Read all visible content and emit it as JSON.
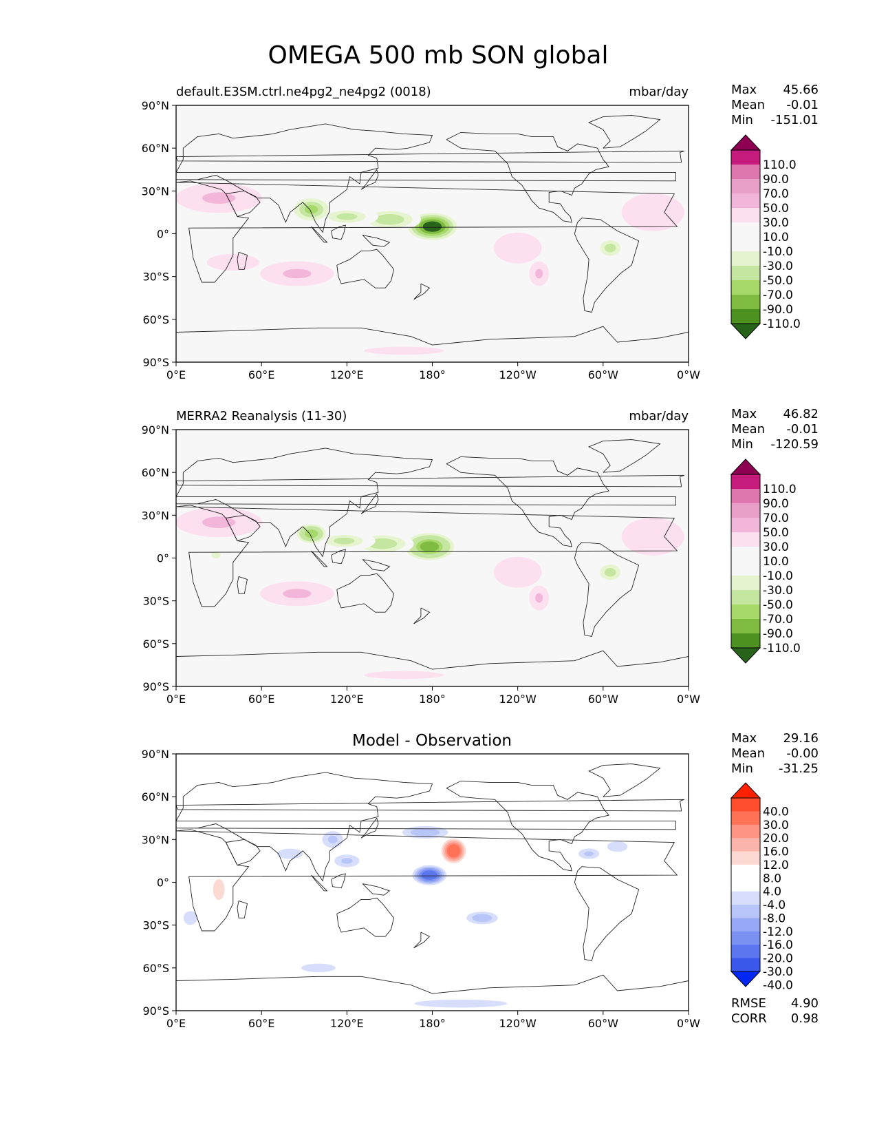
{
  "figure": {
    "title": "OMEGA 500 mb SON global"
  },
  "axes": {
    "lat_ticks": [
      "90°N",
      "60°N",
      "30°N",
      "0°",
      "30°S",
      "60°S",
      "90°S"
    ],
    "lon_ticks": [
      "0°E",
      "60°E",
      "120°E",
      "180°",
      "120°W",
      "60°W",
      "0°W"
    ]
  },
  "colormaps": {
    "pink_green": [
      "#8e0152",
      "#c51b7d",
      "#de77ae",
      "#e8a0c8",
      "#f1b6da",
      "#fde0ef",
      "#f7f7f7",
      "#f7f7f7",
      "#e6f5d0",
      "#c5e6a0",
      "#a6d96a",
      "#7fbc41",
      "#4d9221",
      "#276419"
    ],
    "diff": [
      "#ff2000",
      "#ff4d2e",
      "#ff7256",
      "#fd9383",
      "#fbb4aa",
      "#fcd9d2",
      "#ffffff",
      "#ffffff",
      "#d6defc",
      "#b8c5f9",
      "#97a9f6",
      "#7b91f2",
      "#5b76ef",
      "#3a58ec",
      "#0028f5"
    ]
  },
  "chart_data": [
    {
      "type": "heatmap",
      "title": "default.E3SM.ctrl.ne4pg2_ne4pg2 (0018)",
      "units": "mbar/day",
      "xlim": [
        0,
        360
      ],
      "ylim": [
        -90,
        90
      ],
      "stats": {
        "max_label": "Max",
        "max": "45.66",
        "mean_label": "Mean",
        "mean": "-0.01",
        "min_label": "Min",
        "min": "-151.01"
      },
      "colorbar_levels": [
        "110.0",
        "90.0",
        "70.0",
        "50.0",
        "30.0",
        "10.0",
        "-10.0",
        "-30.0",
        "-50.0",
        "-70.0",
        "-90.0",
        "-110.0"
      ],
      "features": [
        {
          "lon": 180,
          "lat": 5,
          "rx": 20,
          "ry": 11,
          "v": -140
        },
        {
          "lon": 150,
          "lat": 10,
          "rx": 22,
          "ry": 8,
          "v": -75
        },
        {
          "lon": 120,
          "lat": 12,
          "rx": 22,
          "ry": 7,
          "v": -60
        },
        {
          "lon": 95,
          "lat": 17,
          "rx": 14,
          "ry": 9,
          "v": -95
        },
        {
          "lon": 290,
          "lat": 10,
          "rx": 12,
          "ry": 6,
          "v": -30
        },
        {
          "lon": 305,
          "lat": -10,
          "rx": 12,
          "ry": 9,
          "v": -60
        },
        {
          "lon": 30,
          "lat": 25,
          "rx": 35,
          "ry": 12,
          "v": 35
        },
        {
          "lon": 40,
          "lat": -20,
          "rx": 25,
          "ry": 8,
          "v": 28
        },
        {
          "lon": 85,
          "lat": -28,
          "rx": 30,
          "ry": 10,
          "v": 40
        },
        {
          "lon": 240,
          "lat": -10,
          "rx": 28,
          "ry": 18,
          "v": 22
        },
        {
          "lon": 335,
          "lat": 15,
          "rx": 30,
          "ry": 18,
          "v": 25
        },
        {
          "lon": 120,
          "lat": -52,
          "rx": 35,
          "ry": 8,
          "v": -20
        },
        {
          "lon": 175,
          "lat": 45,
          "rx": 20,
          "ry": 7,
          "v": -20
        },
        {
          "lon": 205,
          "lat": 65,
          "rx": 25,
          "ry": 6,
          "v": -18
        },
        {
          "lon": 160,
          "lat": -82,
          "rx": 60,
          "ry": 6,
          "v": 15
        },
        {
          "lon": 255,
          "lat": -28,
          "rx": 8,
          "ry": 10,
          "v": 40
        },
        {
          "lon": 320,
          "lat": -50,
          "rx": 20,
          "ry": 6,
          "v": -20
        }
      ]
    },
    {
      "type": "heatmap",
      "title": "MERRA2 Reanalysis (11-30)",
      "units": "mbar/day",
      "xlim": [
        0,
        360
      ],
      "ylim": [
        -90,
        90
      ],
      "stats": {
        "max_label": "Max",
        "max": "46.82",
        "mean_label": "Mean",
        "mean": "-0.01",
        "min_label": "Min",
        "min": "-120.59"
      },
      "colorbar_levels": [
        "110.0",
        "90.0",
        "70.0",
        "50.0",
        "30.0",
        "10.0",
        "-10.0",
        "-30.0",
        "-50.0",
        "-70.0",
        "-90.0",
        "-110.0"
      ],
      "features": [
        {
          "lon": 178,
          "lat": 8,
          "rx": 20,
          "ry": 11,
          "v": -118
        },
        {
          "lon": 145,
          "lat": 10,
          "rx": 22,
          "ry": 8,
          "v": -70
        },
        {
          "lon": 118,
          "lat": 12,
          "rx": 22,
          "ry": 7,
          "v": -60
        },
        {
          "lon": 95,
          "lat": 17,
          "rx": 14,
          "ry": 9,
          "v": -90
        },
        {
          "lon": 290,
          "lat": 10,
          "rx": 12,
          "ry": 6,
          "v": -30
        },
        {
          "lon": 305,
          "lat": -10,
          "rx": 12,
          "ry": 9,
          "v": -60
        },
        {
          "lon": 28,
          "lat": 2,
          "rx": 10,
          "ry": 7,
          "v": -35
        },
        {
          "lon": 30,
          "lat": 25,
          "rx": 35,
          "ry": 12,
          "v": 35
        },
        {
          "lon": 85,
          "lat": -25,
          "rx": 30,
          "ry": 10,
          "v": 40
        },
        {
          "lon": 240,
          "lat": -10,
          "rx": 28,
          "ry": 18,
          "v": 22
        },
        {
          "lon": 335,
          "lat": 15,
          "rx": 30,
          "ry": 18,
          "v": 25
        },
        {
          "lon": 120,
          "lat": -52,
          "rx": 35,
          "ry": 8,
          "v": -20
        },
        {
          "lon": 175,
          "lat": 45,
          "rx": 20,
          "ry": 7,
          "v": -20
        },
        {
          "lon": 205,
          "lat": 65,
          "rx": 25,
          "ry": 6,
          "v": -18
        },
        {
          "lon": 160,
          "lat": -82,
          "rx": 60,
          "ry": 6,
          "v": 15
        },
        {
          "lon": 255,
          "lat": -28,
          "rx": 8,
          "ry": 10,
          "v": 40
        }
      ]
    },
    {
      "type": "heatmap",
      "title": "Model - Observation",
      "units": "",
      "xlim": [
        0,
        360
      ],
      "ylim": [
        -90,
        90
      ],
      "stats": {
        "max_label": "Max",
        "max": "29.16",
        "mean_label": "Mean",
        "mean": "-0.00",
        "min_label": "Min",
        "min": "-31.25"
      },
      "colorbar_levels": [
        "40.0",
        "30.0",
        "20.0",
        "16.0",
        "12.0",
        "8.0",
        "4.0",
        "-4.0",
        "-8.0",
        "-12.0",
        "-16.0",
        "-20.0",
        "-30.0",
        "-40.0"
      ],
      "metrics": {
        "rmse_label": "RMSE",
        "rmse": "4.90",
        "corr_label": "CORR",
        "corr": "0.98"
      },
      "features": [
        {
          "lon": 195,
          "lat": 22,
          "rx": 10,
          "ry": 10,
          "v": 29
        },
        {
          "lon": 178,
          "lat": 5,
          "rx": 12,
          "ry": 7,
          "v": -30
        },
        {
          "lon": 175,
          "lat": 35,
          "rx": 22,
          "ry": 6,
          "v": -12
        },
        {
          "lon": 110,
          "lat": 30,
          "rx": 10,
          "ry": 8,
          "v": -10
        },
        {
          "lon": 120,
          "lat": 15,
          "rx": 12,
          "ry": 6,
          "v": -10
        },
        {
          "lon": 30,
          "lat": -5,
          "rx": 12,
          "ry": 22,
          "v": 10
        },
        {
          "lon": 80,
          "lat": 20,
          "rx": 15,
          "ry": 6,
          "v": -8
        },
        {
          "lon": 215,
          "lat": -25,
          "rx": 15,
          "ry": 6,
          "v": -12
        },
        {
          "lon": 230,
          "lat": -40,
          "rx": 15,
          "ry": 7,
          "v": 8
        },
        {
          "lon": 150,
          "lat": -35,
          "rx": 15,
          "ry": 6,
          "v": 8
        },
        {
          "lon": 330,
          "lat": 0,
          "rx": 20,
          "ry": 10,
          "v": 8
        },
        {
          "lon": 200,
          "lat": -85,
          "rx": 70,
          "ry": 6,
          "v": -6
        },
        {
          "lon": 140,
          "lat": 40,
          "rx": 12,
          "ry": 8,
          "v": 8
        },
        {
          "lon": 60,
          "lat": -65,
          "rx": 25,
          "ry": 5,
          "v": 8
        },
        {
          "lon": 290,
          "lat": 20,
          "rx": 10,
          "ry": 5,
          "v": -10
        },
        {
          "lon": 310,
          "lat": 25,
          "rx": 12,
          "ry": 6,
          "v": -8
        },
        {
          "lon": 70,
          "lat": 35,
          "rx": 12,
          "ry": 5,
          "v": 6
        },
        {
          "lon": 245,
          "lat": -15,
          "rx": 15,
          "ry": 8,
          "v": 8
        },
        {
          "lon": 10,
          "lat": -25,
          "rx": 8,
          "ry": 8,
          "v": -8
        },
        {
          "lon": 170,
          "lat": -70,
          "rx": 10,
          "ry": 6,
          "v": 6
        },
        {
          "lon": 100,
          "lat": -60,
          "rx": 20,
          "ry": 5,
          "v": -8
        }
      ]
    }
  ]
}
